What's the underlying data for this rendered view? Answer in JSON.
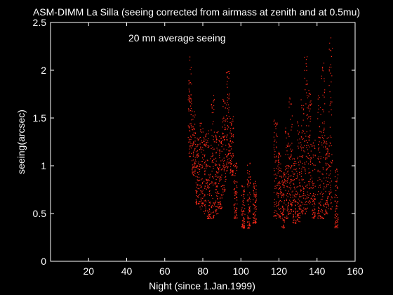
{
  "chart_data": {
    "type": "scatter",
    "title": "ASM-DIMM La Silla (seeing corrected from airmass at zenith and at 0.5mu)",
    "annotation": "20 mn average seeing",
    "xlabel": "Night (since 1.Jan.1999)",
    "ylabel": "seeing(arcsec)",
    "xlim": [
      0,
      160
    ],
    "ylim": [
      0,
      2.5
    ],
    "x_ticks": [
      20,
      40,
      60,
      80,
      100,
      120,
      140,
      160
    ],
    "y_ticks": [
      0,
      0.5,
      1,
      1.5,
      2,
      2.5
    ],
    "grid": false,
    "colors": {
      "background": "#000000",
      "axes": "#ffffff",
      "points": "#ff2a1a"
    },
    "nights": [
      {
        "x": 73,
        "lo": 1.1,
        "hi": 2.15
      },
      {
        "x": 75,
        "lo": 0.9,
        "hi": 1.6
      },
      {
        "x": 77,
        "lo": 0.6,
        "hi": 1.3
      },
      {
        "x": 79,
        "lo": 0.55,
        "hi": 1.5
      },
      {
        "x": 81,
        "lo": 0.5,
        "hi": 1.35
      },
      {
        "x": 83,
        "lo": 0.45,
        "hi": 1.4
      },
      {
        "x": 85,
        "lo": 0.45,
        "hi": 1.75
      },
      {
        "x": 87,
        "lo": 0.5,
        "hi": 1.4
      },
      {
        "x": 89,
        "lo": 0.55,
        "hi": 1.35
      },
      {
        "x": 91,
        "lo": 0.7,
        "hi": 1.7
      },
      {
        "x": 93,
        "lo": 0.95,
        "hi": 2.0
      },
      {
        "x": 95,
        "lo": 0.9,
        "hi": 1.55
      },
      {
        "x": 97,
        "lo": 0.45,
        "hi": 1.05
      },
      {
        "x": 101,
        "lo": 0.35,
        "hi": 0.8
      },
      {
        "x": 104,
        "lo": 0.35,
        "hi": 1.05
      },
      {
        "x": 107,
        "lo": 0.4,
        "hi": 0.85
      },
      {
        "x": 118,
        "lo": 0.45,
        "hi": 1.5
      },
      {
        "x": 120,
        "lo": 0.45,
        "hi": 1.15
      },
      {
        "x": 122,
        "lo": 0.35,
        "hi": 0.95
      },
      {
        "x": 124,
        "lo": 0.45,
        "hi": 1.4
      },
      {
        "x": 126,
        "lo": 0.5,
        "hi": 1.75
      },
      {
        "x": 128,
        "lo": 0.4,
        "hi": 1.1
      },
      {
        "x": 130,
        "lo": 0.4,
        "hi": 1.5
      },
      {
        "x": 132,
        "lo": 0.5,
        "hi": 1.7
      },
      {
        "x": 134,
        "lo": 0.5,
        "hi": 2.15
      },
      {
        "x": 136,
        "lo": 0.6,
        "hi": 1.8
      },
      {
        "x": 138,
        "lo": 0.45,
        "hi": 1.3
      },
      {
        "x": 141,
        "lo": 0.45,
        "hi": 1.75
      },
      {
        "x": 143,
        "lo": 0.45,
        "hi": 2.1
      },
      {
        "x": 145,
        "lo": 0.5,
        "hi": 1.3
      },
      {
        "x": 147,
        "lo": 0.55,
        "hi": 2.35
      },
      {
        "x": 150,
        "lo": 0.35,
        "hi": 1.0
      }
    ]
  }
}
